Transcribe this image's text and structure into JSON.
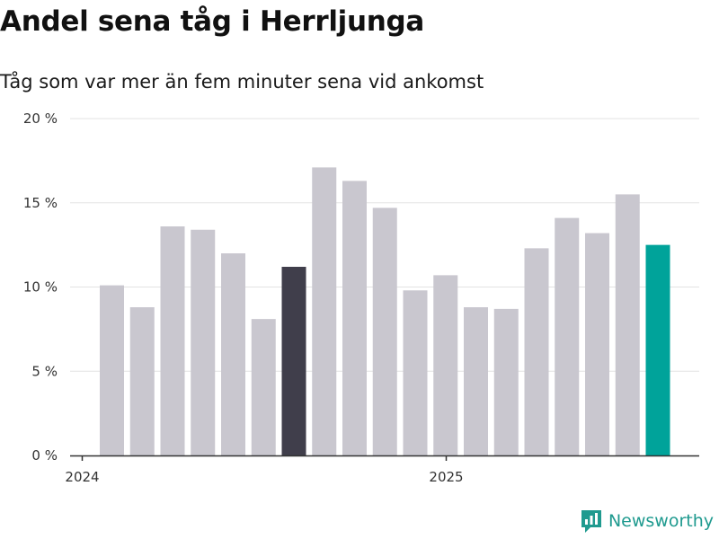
{
  "chart_data": {
    "type": "bar",
    "title": "Andel sena tåg i Herrljunga",
    "subtitle": "Tåg som var mer än fem minuter sena vid ankomst",
    "xlabel": "",
    "ylabel": "",
    "ylim": [
      0,
      20
    ],
    "yticks": [
      {
        "value": 0,
        "label": "0 %"
      },
      {
        "value": 5,
        "label": "5 %"
      },
      {
        "value": 10,
        "label": "10 %"
      },
      {
        "value": 15,
        "label": "15 %"
      },
      {
        "value": 20,
        "label": "20 %"
      }
    ],
    "xticks": [
      {
        "index": 0,
        "label": "2024"
      },
      {
        "index": 12,
        "label": "2025"
      }
    ],
    "categories": [
      "2024-01",
      "2024-02",
      "2024-03",
      "2024-04",
      "2024-05",
      "2024-06",
      "2024-07",
      "2024-08",
      "2024-09",
      "2024-10",
      "2024-11",
      "2024-12",
      "2025-01",
      "2025-02",
      "2025-03",
      "2025-04",
      "2025-05",
      "2025-06",
      "2025-07"
    ],
    "values": [
      10.1,
      8.8,
      13.6,
      13.4,
      12.0,
      8.1,
      11.2,
      17.1,
      16.3,
      14.7,
      9.8,
      10.7,
      8.8,
      8.7,
      12.3,
      14.1,
      13.2,
      15.5,
      12.5
    ],
    "grid": true,
    "highlight": {
      "index": 6,
      "color": "#403e4b"
    },
    "latest": {
      "index": 18,
      "color": "#00a39a"
    },
    "bar_color": "#c9c7cf"
  },
  "brand": {
    "name": "Newsworthy",
    "icon": "newsworthy-logo-icon",
    "color": "#1f9a8f"
  }
}
